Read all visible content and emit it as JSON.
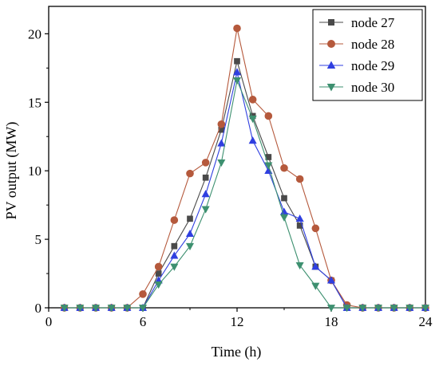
{
  "chart_data": {
    "type": "line",
    "xlabel": "Time (h)",
    "ylabel": "PV output (MW)",
    "xlim": [
      0,
      24
    ],
    "ylim": [
      0,
      22
    ],
    "xticks": [
      0,
      6,
      12,
      18,
      24
    ],
    "yticks": [
      0,
      5,
      10,
      15,
      20
    ],
    "grid": false,
    "legend_position": "top-right",
    "x": [
      1,
      2,
      3,
      4,
      5,
      6,
      7,
      8,
      9,
      10,
      11,
      12,
      13,
      14,
      15,
      16,
      17,
      18,
      19,
      20,
      21,
      22,
      23,
      24
    ],
    "series": [
      {
        "name": "node 27",
        "color": "#4a4a4a",
        "marker": "square",
        "values": [
          0,
          0,
          0,
          0,
          0,
          0,
          2.5,
          4.5,
          6.5,
          9.5,
          13.0,
          18.0,
          14.0,
          11.0,
          8.0,
          6.0,
          3.0,
          2.0,
          0,
          0,
          0,
          0,
          0,
          0
        ]
      },
      {
        "name": "node 28",
        "color": "#b5593c",
        "marker": "circle",
        "values": [
          0,
          0,
          0,
          0,
          0,
          1.0,
          3.0,
          6.4,
          9.8,
          10.6,
          13.4,
          20.4,
          15.2,
          14.0,
          10.2,
          9.4,
          5.8,
          2.0,
          0.2,
          0,
          0,
          0,
          0,
          0
        ]
      },
      {
        "name": "node 29",
        "color": "#2f3fe0",
        "marker": "triangle-up",
        "values": [
          0,
          0,
          0,
          0,
          0,
          0,
          2.0,
          3.8,
          5.4,
          8.3,
          12.0,
          17.2,
          12.2,
          10.0,
          7.0,
          6.5,
          3.0,
          2.0,
          0,
          0,
          0,
          0,
          0,
          0
        ]
      },
      {
        "name": "node 30",
        "color": "#3d9070",
        "marker": "triangle-down",
        "values": [
          0,
          0,
          0,
          0,
          0,
          0,
          1.7,
          3.0,
          4.5,
          7.2,
          10.6,
          16.6,
          13.8,
          10.4,
          6.6,
          3.1,
          1.6,
          0,
          0,
          0,
          0,
          0,
          0,
          0
        ]
      }
    ]
  }
}
